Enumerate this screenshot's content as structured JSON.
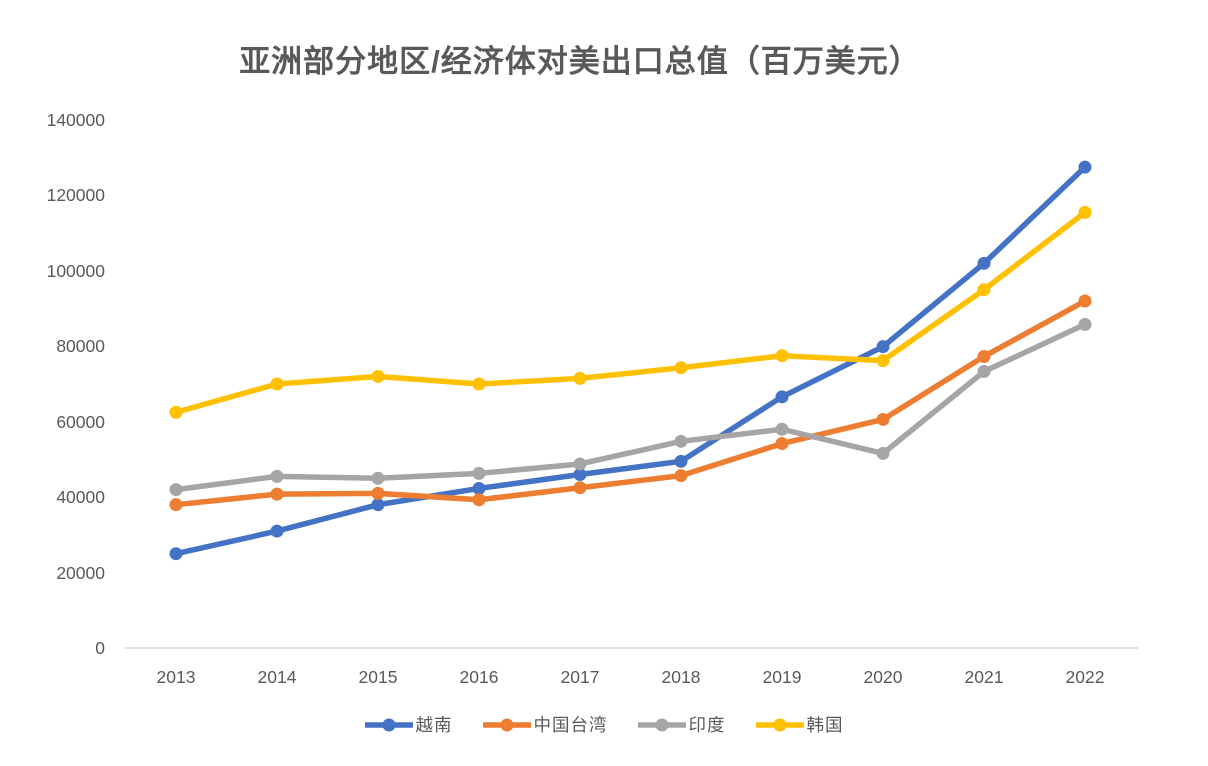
{
  "title": "亚洲部分地区/经济体对美出口总值（百万美元）",
  "colors": {
    "text": "#595959",
    "axis_line": "#D9D9D9",
    "background": "#FFFFFF"
  },
  "chart_data": {
    "type": "line",
    "title": "亚洲部分地区/经济体对美出口总值（百万美元）",
    "x": [
      "2013",
      "2014",
      "2015",
      "2016",
      "2017",
      "2018",
      "2019",
      "2020",
      "2021",
      "2022"
    ],
    "series": [
      {
        "name": "越南",
        "color": "#4472C4",
        "values": [
          25000,
          31000,
          38000,
          42300,
          46000,
          49500,
          66600,
          79900,
          102000,
          127500
        ]
      },
      {
        "name": "中国台湾",
        "color": "#ED7D31",
        "values": [
          38000,
          40800,
          41000,
          39300,
          42500,
          45700,
          54200,
          60600,
          77300,
          92000
        ]
      },
      {
        "name": "印度",
        "color": "#A5A5A5",
        "values": [
          42000,
          45500,
          45000,
          46300,
          48800,
          54800,
          58000,
          51600,
          73300,
          85800
        ]
      },
      {
        "name": "韩国",
        "color": "#FFC000",
        "values": [
          62500,
          70000,
          72000,
          70000,
          71500,
          74300,
          77500,
          76200,
          95000,
          115500
        ]
      }
    ],
    "xlabel": "",
    "ylabel": "",
    "ylim": [
      0,
      140000
    ],
    "ytick_step": 20000,
    "y_ticks": [
      "0",
      "20000",
      "40000",
      "60000",
      "80000",
      "100000",
      "120000",
      "140000"
    ],
    "grid": false,
    "legend_position": "bottom",
    "marker": "circle"
  }
}
